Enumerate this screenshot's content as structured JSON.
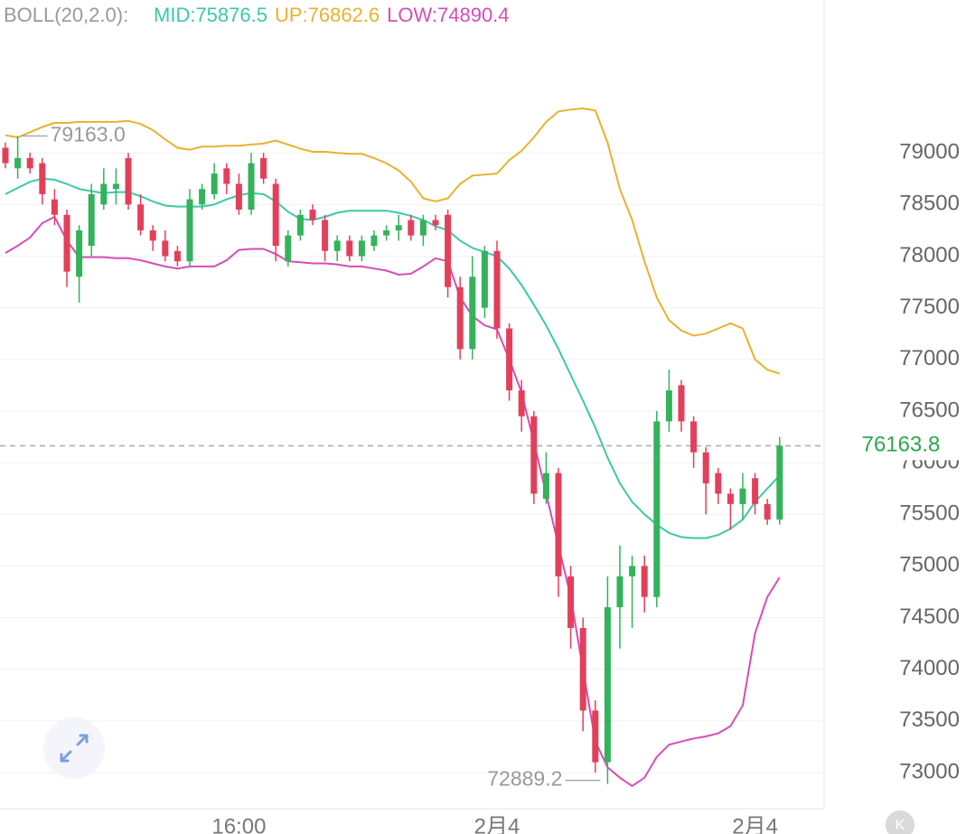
{
  "chart_data": {
    "type": "candlestick",
    "indicator_label": "BOLL(20,2.0):",
    "categories": [
      null,
      null,
      null,
      null,
      null,
      null,
      null,
      null,
      null,
      null,
      null,
      null,
      null,
      null,
      null,
      null,
      null,
      null,
      null,
      "16:00",
      null,
      null,
      null,
      null,
      null,
      null,
      null,
      null,
      null,
      null,
      null,
      null,
      null,
      null,
      null,
      null,
      null,
      null,
      null,
      null,
      "2月4",
      null,
      null,
      null,
      null,
      null,
      null,
      null,
      null,
      null,
      null,
      null,
      null,
      null,
      null,
      null,
      null,
      null,
      null,
      null,
      null,
      "2月4",
      null,
      null
    ],
    "candles": {
      "open": [
        79050,
        78850,
        78950,
        78900,
        78550,
        78400,
        77800,
        78100,
        78500,
        78650,
        78950,
        78500,
        78250,
        78150,
        78050,
        77950,
        78500,
        78600,
        78850,
        78700,
        78450,
        78950,
        78700,
        77950,
        78200,
        78450,
        78350,
        78050,
        78150,
        78000,
        78100,
        78200,
        78250,
        78350,
        78200,
        78350,
        78400,
        77700,
        77100,
        77500,
        78050,
        77300,
        76700,
        76450,
        75650,
        75900,
        74900,
        74400,
        73600,
        73100,
        74600,
        74900,
        75000,
        74700,
        76400,
        76750,
        76400,
        76100,
        75900,
        75700,
        75600,
        75850,
        75600,
        75450
      ],
      "high": [
        79100,
        79163,
        79000,
        78950,
        78650,
        78450,
        78300,
        78700,
        78850,
        78850,
        79000,
        78600,
        78300,
        78250,
        78100,
        78650,
        78700,
        78900,
        78900,
        78800,
        79000,
        79000,
        78750,
        78250,
        78450,
        78500,
        78400,
        78200,
        78200,
        78200,
        78250,
        78300,
        78400,
        78400,
        78400,
        78400,
        78450,
        77800,
        78000,
        78100,
        78150,
        77350,
        76800,
        76500,
        76100,
        75950,
        75000,
        74500,
        73700,
        74900,
        75200,
        75100,
        75100,
        76500,
        76900,
        76800,
        76450,
        76150,
        75950,
        75750,
        75900,
        75900,
        75650,
        76250
      ],
      "low": [
        78850,
        78750,
        78800,
        78500,
        78300,
        77700,
        77550,
        78000,
        78450,
        78500,
        78450,
        78200,
        78050,
        77950,
        77900,
        77900,
        78450,
        78550,
        78600,
        78400,
        78400,
        78700,
        77950,
        77900,
        78150,
        78300,
        77950,
        77950,
        77950,
        77950,
        78050,
        78150,
        78150,
        78150,
        78100,
        78250,
        77600,
        77000,
        77000,
        77400,
        77200,
        76600,
        76300,
        75600,
        75600,
        74700,
        74200,
        73400,
        73000,
        72889.2,
        74200,
        74400,
        74550,
        74600,
        76300,
        76300,
        75950,
        75500,
        75600,
        75350,
        75450,
        75500,
        75400,
        75400
      ],
      "close": [
        78900,
        78950,
        78850,
        78600,
        78400,
        77850,
        78250,
        78600,
        78700,
        78700,
        78500,
        78250,
        78150,
        78000,
        77950,
        78550,
        78650,
        78800,
        78700,
        78450,
        78900,
        78750,
        78100,
        78200,
        78400,
        78350,
        78050,
        78150,
        78000,
        78150,
        78200,
        78250,
        78300,
        78200,
        78350,
        78300,
        77700,
        77100,
        77800,
        78050,
        77300,
        76700,
        76450,
        75700,
        75900,
        74900,
        74400,
        73600,
        73100,
        74600,
        74900,
        75000,
        74700,
        76400,
        76700,
        76400,
        76100,
        75800,
        75700,
        75600,
        75750,
        75600,
        75450,
        76163.8
      ]
    },
    "up_color": "#34b25c",
    "down_color": "#e2405a",
    "series": [
      {
        "name": "MID:75876.5",
        "color": "#3cc9a6",
        "values": [
          78600,
          78660,
          78720,
          78750,
          78740,
          78700,
          78650,
          78630,
          78610,
          78620,
          78620,
          78580,
          78530,
          78490,
          78480,
          78480,
          78480,
          78500,
          78550,
          78590,
          78610,
          78600,
          78530,
          78430,
          78360,
          78350,
          78380,
          78420,
          78440,
          78440,
          78440,
          78440,
          78420,
          78390,
          78350,
          78290,
          78250,
          78150,
          78080,
          78040,
          78000,
          77880,
          77720,
          77530,
          77330,
          77100,
          76850,
          76600,
          76340,
          76050,
          75800,
          75620,
          75500,
          75400,
          75320,
          75280,
          75270,
          75270,
          75300,
          75360,
          75450,
          75620,
          75750,
          75876.5
        ]
      },
      {
        "name": "UP:76862.6",
        "color": "#e6b32e",
        "values": [
          79170,
          79150,
          79200,
          79250,
          79290,
          79290,
          79300,
          79300,
          79300,
          79300,
          79310,
          79280,
          79220,
          79130,
          79050,
          79030,
          79060,
          79060,
          79070,
          79070,
          79080,
          79090,
          79120,
          79080,
          79040,
          79010,
          79010,
          79000,
          78990,
          78990,
          78950,
          78900,
          78830,
          78720,
          78560,
          78530,
          78560,
          78700,
          78780,
          78790,
          78800,
          78930,
          79020,
          79150,
          79300,
          79400,
          79420,
          79430,
          79410,
          79100,
          78650,
          78350,
          77950,
          77600,
          77380,
          77280,
          77230,
          77250,
          77300,
          77350,
          77300,
          77000,
          76900,
          76862.6
        ]
      },
      {
        "name": "LOW:74890.4",
        "color": "#d64db6",
        "values": [
          78030,
          78100,
          78180,
          78320,
          78380,
          78150,
          77990,
          77990,
          77990,
          77980,
          77980,
          77960,
          77930,
          77900,
          77880,
          77900,
          77900,
          77900,
          77960,
          78060,
          78070,
          78070,
          78020,
          77950,
          77940,
          77930,
          77930,
          77920,
          77900,
          77900,
          77880,
          77860,
          77820,
          77830,
          77900,
          77980,
          77950,
          77600,
          77420,
          77330,
          77290,
          77000,
          76680,
          76200,
          75700,
          75200,
          74700,
          74000,
          73300,
          73050,
          72950,
          72870,
          72950,
          73150,
          73270,
          73300,
          73330,
          73350,
          73380,
          73450,
          73650,
          74350,
          74700,
          74890.4
        ]
      }
    ],
    "ylim": [
      72650,
      80480
    ],
    "yticks": [
      73000,
      73500,
      74000,
      74500,
      75000,
      75500,
      76000,
      76500,
      77000,
      77500,
      78000,
      78500,
      79000
    ],
    "grid": true,
    "last_price": 76163.8,
    "last_price_color": "#2aa84e",
    "annotations": [
      {
        "value": 79163,
        "label": "79163.0"
      },
      72889.2
    ],
    "corner_button": "K"
  }
}
